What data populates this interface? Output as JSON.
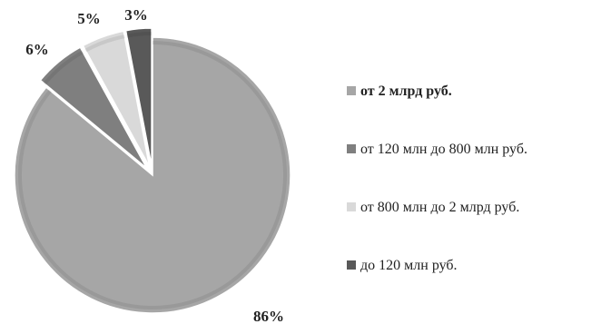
{
  "chart_data": {
    "type": "pie",
    "categories": [
      "от 2 млрд руб.",
      "от 120 млн до 800 млн руб.",
      "от 800 млн до 2 млрд руб.",
      "до 120 млн руб."
    ],
    "values": [
      86,
      6,
      5,
      3
    ],
    "value_labels": [
      "86%",
      "6%",
      "5%",
      "3%"
    ],
    "colors": [
      "#a6a6a6",
      "#7f7f7f",
      "#d9d9d9",
      "#595959"
    ],
    "start": "12 o'clock",
    "direction": "clockwise",
    "legend_position": "right",
    "legend_bold_index": 0,
    "grid": false
  }
}
